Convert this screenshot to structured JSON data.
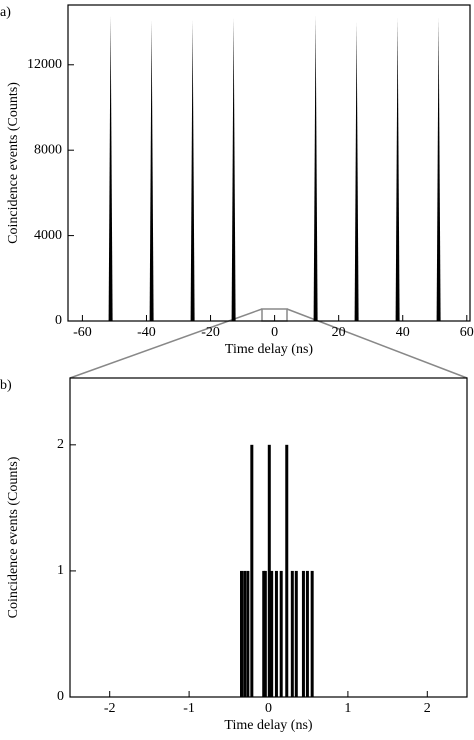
{
  "chart_data": [
    {
      "type": "spike",
      "panel_label": "a)",
      "xlabel": "Time delay (ns)",
      "ylabel": "Coincidence events (Counts)",
      "x": [
        -51.2,
        -38.4,
        -25.6,
        -12.8,
        12.8,
        25.6,
        38.4,
        51.2
      ],
      "values": [
        14300,
        14100,
        14100,
        14200,
        14300,
        14000,
        14200,
        14200
      ],
      "color": "#000000",
      "xlim": [
        -64.5,
        61
      ],
      "ylim": [
        0,
        14800
      ],
      "xticks": [
        -60,
        -40,
        -20,
        0,
        20,
        40,
        60
      ],
      "yticks": [
        0,
        4000,
        8000,
        12000
      ]
    },
    {
      "type": "bar",
      "panel_label": "b)",
      "xlabel": "Time delay (ns)",
      "ylabel": "Coincidence events (Counts)",
      "x": [
        -0.34,
        -0.3,
        -0.26,
        -0.21,
        -0.06,
        -0.04,
        0.01,
        0.04,
        0.1,
        0.16,
        0.23,
        0.3,
        0.35,
        0.44,
        0.49,
        0.55
      ],
      "values": [
        1,
        1,
        1,
        2,
        1,
        1,
        2,
        1,
        1,
        1,
        2,
        1,
        1,
        1,
        1,
        1
      ],
      "color": "#000000",
      "xlim": [
        -2.5,
        2.5
      ],
      "ylim": [
        0,
        2.53
      ],
      "xticks": [
        -2,
        -1,
        0,
        1,
        2
      ],
      "yticks": [
        0,
        1,
        2
      ]
    }
  ]
}
